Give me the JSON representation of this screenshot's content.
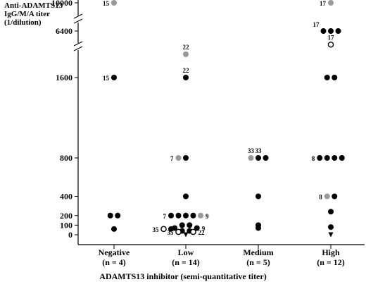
{
  "chart_data": {
    "type": "scatter",
    "ylabel_lines": [
      "Anti-ADAMTS13",
      "IgG/M/A titer",
      "(1/dilution)"
    ],
    "xlabel": "ADAMTS13 inhibitor (semi-quantitative titer)",
    "categories": [
      {
        "name": "Negative",
        "n": "(n = 4)"
      },
      {
        "name": "Low",
        "n": "(n = 14)"
      },
      {
        "name": "Medium",
        "n": "(n = 5)"
      },
      {
        "name": "High",
        "n": "(n = 12)"
      }
    ],
    "y_tick_labels": [
      "10000",
      "6400",
      "1600",
      "800",
      "400",
      "200",
      "100",
      "0"
    ],
    "y_tick_values": [
      10000,
      6400,
      1600,
      800,
      400,
      200,
      100,
      0
    ],
    "axis_breaks": [
      [
        1600,
        6400
      ],
      [
        6400,
        10000
      ]
    ],
    "colors": {
      "black": "#000000",
      "gray": "#999999",
      "open": "#ffffff"
    },
    "points": [
      {
        "cat": 0,
        "y": 10000,
        "style": "gray",
        "off": 0,
        "label": "15",
        "lside": "left"
      },
      {
        "cat": 0,
        "y": 1600,
        "style": "black",
        "off": 0,
        "label": "15",
        "lside": "left"
      },
      {
        "cat": 0,
        "y": 200,
        "style": "black",
        "off": -0.5
      },
      {
        "cat": 0,
        "y": 200,
        "style": "black",
        "off": 0.5
      },
      {
        "cat": 0,
        "y": 60,
        "style": "black",
        "off": 0
      },
      {
        "cat": 1,
        "y": 4000,
        "style": "gray",
        "off": 0,
        "label": "22",
        "lside": "above"
      },
      {
        "cat": 1,
        "y": 1600,
        "style": "black",
        "off": 0,
        "label": "22",
        "lside": "above"
      },
      {
        "cat": 1,
        "y": 800,
        "style": "gray",
        "off": -1,
        "label": "7",
        "lside": "left"
      },
      {
        "cat": 1,
        "y": 800,
        "style": "black",
        "off": 0
      },
      {
        "cat": 1,
        "y": 400,
        "style": "black",
        "off": 0
      },
      {
        "cat": 1,
        "y": 200,
        "style": "black",
        "off": -2,
        "label": "7",
        "lside": "left"
      },
      {
        "cat": 1,
        "y": 200,
        "style": "black",
        "off": -1
      },
      {
        "cat": 1,
        "y": 200,
        "style": "black",
        "off": 0
      },
      {
        "cat": 1,
        "y": 200,
        "style": "black",
        "off": 1
      },
      {
        "cat": 1,
        "y": 200,
        "style": "gray",
        "off": 2,
        "label": "9",
        "lside": "right"
      },
      {
        "cat": 1,
        "y": 100,
        "style": "black",
        "off": -0.5
      },
      {
        "cat": 1,
        "y": 100,
        "style": "black",
        "off": 0.5
      },
      {
        "cat": 1,
        "y": 70,
        "style": "black",
        "off": -1.5
      },
      {
        "cat": 1,
        "y": 70,
        "style": "black",
        "off": 1.5,
        "label": "9",
        "lside": "right"
      },
      {
        "cat": 1,
        "y": 60,
        "style": "open",
        "off": -3,
        "label": "35",
        "lside": "left"
      },
      {
        "cat": 1,
        "y": 60,
        "style": "black",
        "off": -2
      },
      {
        "cat": 1,
        "y": 40,
        "style": "black",
        "off": -0.5
      },
      {
        "cat": 1,
        "y": 40,
        "style": "black",
        "off": 0.5
      },
      {
        "cat": 1,
        "y": 30,
        "style": "open",
        "off": -1,
        "label": "35",
        "lside": "left"
      },
      {
        "cat": 1,
        "y": 30,
        "style": "open",
        "off": 1,
        "label": "22",
        "lside": "right"
      },
      {
        "cat": 1,
        "y": 0,
        "style": "tri",
        "off": 0
      },
      {
        "cat": 2,
        "y": 800,
        "style": "gray",
        "off": -1,
        "label": "33",
        "lside": "above"
      },
      {
        "cat": 2,
        "y": 800,
        "style": "black",
        "off": 0,
        "label": "33",
        "lside": "above"
      },
      {
        "cat": 2,
        "y": 800,
        "style": "black",
        "off": 1
      },
      {
        "cat": 2,
        "y": 400,
        "style": "black",
        "off": 0
      },
      {
        "cat": 2,
        "y": 100,
        "style": "black",
        "off": 0
      },
      {
        "cat": 2,
        "y": 70,
        "style": "black",
        "off": 0
      },
      {
        "cat": 3,
        "y": 10000,
        "style": "gray",
        "off": 0,
        "label": "17",
        "lside": "left"
      },
      {
        "cat": 3,
        "y": 6400,
        "style": "black",
        "off": -1,
        "label": "17",
        "lside": "above-left"
      },
      {
        "cat": 3,
        "y": 6400,
        "style": "black",
        "off": 0
      },
      {
        "cat": 3,
        "y": 6400,
        "style": "black",
        "off": 1
      },
      {
        "cat": 3,
        "y": 5000,
        "style": "open",
        "off": 0,
        "label": "17",
        "lside": "above"
      },
      {
        "cat": 3,
        "y": 1600,
        "style": "black",
        "off": -0.5
      },
      {
        "cat": 3,
        "y": 1600,
        "style": "black",
        "off": 0.5
      },
      {
        "cat": 3,
        "y": 800,
        "style": "black",
        "off": -1.5,
        "label": "8",
        "lside": "left"
      },
      {
        "cat": 3,
        "y": 800,
        "style": "black",
        "off": -0.5
      },
      {
        "cat": 3,
        "y": 800,
        "style": "black",
        "off": 0.5
      },
      {
        "cat": 3,
        "y": 800,
        "style": "black",
        "off": 1.5
      },
      {
        "cat": 3,
        "y": 400,
        "style": "gray",
        "off": -0.5,
        "label": "8",
        "lside": "left"
      },
      {
        "cat": 3,
        "y": 400,
        "style": "black",
        "off": 0.5
      },
      {
        "cat": 3,
        "y": 240,
        "style": "black",
        "off": 0
      },
      {
        "cat": 3,
        "y": 80,
        "style": "black",
        "off": 0
      },
      {
        "cat": 3,
        "y": 0,
        "style": "tri",
        "off": 0
      }
    ]
  }
}
